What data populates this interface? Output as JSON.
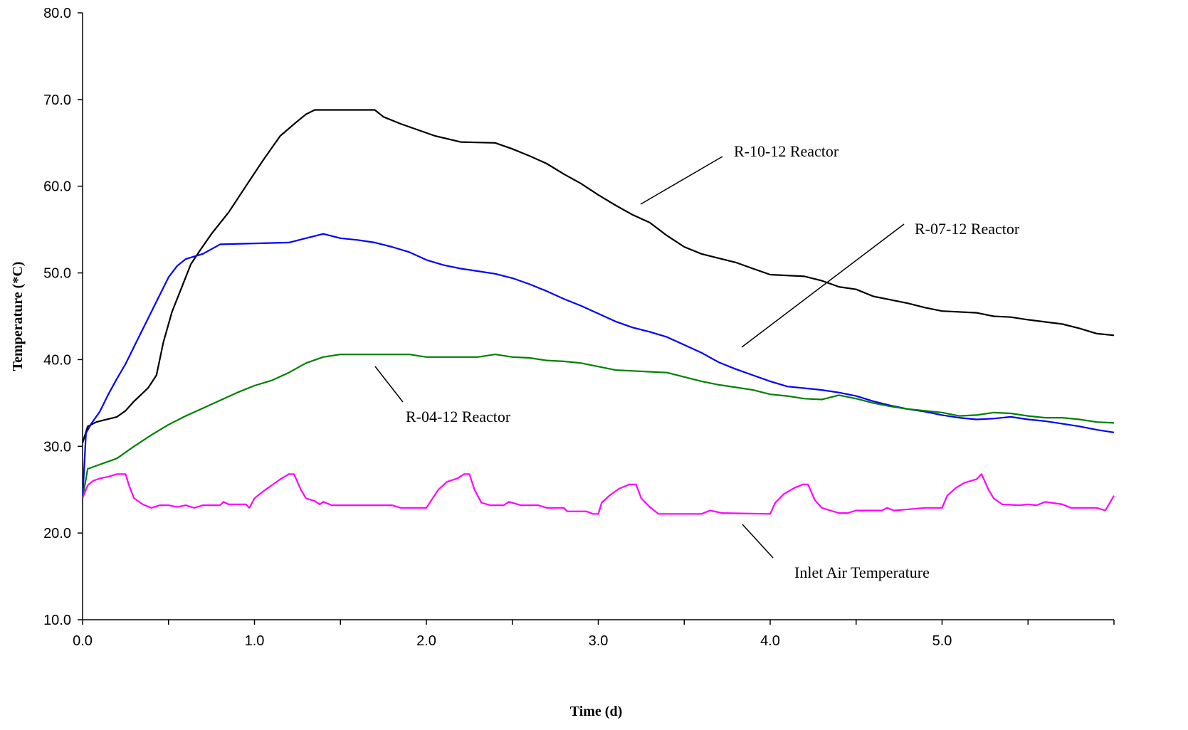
{
  "chart_data": {
    "type": "line",
    "xlabel": "Time (d)",
    "ylabel": "Temperature (*C)",
    "xlim": [
      0,
      6
    ],
    "ylim": [
      10,
      80
    ],
    "x_ticks": [
      "0.0",
      "1.0",
      "2.0",
      "3.0",
      "4.0",
      "5.0"
    ],
    "y_ticks": [
      "10.0",
      "20.0",
      "30.0",
      "40.0",
      "50.0",
      "60.0",
      "70.0",
      "80.0"
    ],
    "grid": false,
    "legend": "none",
    "series": [
      {
        "name": "R-10-12 Reactor",
        "color": "#000000",
        "points": [
          [
            0.0,
            30.4
          ],
          [
            0.03,
            32.3
          ],
          [
            0.08,
            32.8
          ],
          [
            0.12,
            33.0
          ],
          [
            0.2,
            33.4
          ],
          [
            0.25,
            34.1
          ],
          [
            0.3,
            35.2
          ],
          [
            0.38,
            36.7
          ],
          [
            0.43,
            38.2
          ],
          [
            0.47,
            42.0
          ],
          [
            0.52,
            45.5
          ],
          [
            0.58,
            48.5
          ],
          [
            0.63,
            51.0
          ],
          [
            0.68,
            52.5
          ],
          [
            0.75,
            54.5
          ],
          [
            0.85,
            57.0
          ],
          [
            0.95,
            60.0
          ],
          [
            1.05,
            63.0
          ],
          [
            1.15,
            65.8
          ],
          [
            1.25,
            67.5
          ],
          [
            1.3,
            68.3
          ],
          [
            1.35,
            68.8
          ],
          [
            1.7,
            68.8
          ],
          [
            1.75,
            68.0
          ],
          [
            1.85,
            67.2
          ],
          [
            1.95,
            66.5
          ],
          [
            2.05,
            65.8
          ],
          [
            2.2,
            65.1
          ],
          [
            2.4,
            65.0
          ],
          [
            2.5,
            64.3
          ],
          [
            2.6,
            63.5
          ],
          [
            2.7,
            62.6
          ],
          [
            2.8,
            61.4
          ],
          [
            2.9,
            60.3
          ],
          [
            3.0,
            59.0
          ],
          [
            3.1,
            57.8
          ],
          [
            3.2,
            56.7
          ],
          [
            3.3,
            55.8
          ],
          [
            3.4,
            54.3
          ],
          [
            3.5,
            53.0
          ],
          [
            3.6,
            52.2
          ],
          [
            3.7,
            51.7
          ],
          [
            3.8,
            51.2
          ],
          [
            3.9,
            50.5
          ],
          [
            4.0,
            49.8
          ],
          [
            4.2,
            49.6
          ],
          [
            4.3,
            49.1
          ],
          [
            4.4,
            48.4
          ],
          [
            4.5,
            48.1
          ],
          [
            4.6,
            47.3
          ],
          [
            4.7,
            46.9
          ],
          [
            4.8,
            46.5
          ],
          [
            4.9,
            46.0
          ],
          [
            5.0,
            45.6
          ],
          [
            5.2,
            45.4
          ],
          [
            5.3,
            45.0
          ],
          [
            5.4,
            44.9
          ],
          [
            5.5,
            44.6
          ],
          [
            5.7,
            44.1
          ],
          [
            5.8,
            43.6
          ],
          [
            5.9,
            43.0
          ],
          [
            6.0,
            42.8
          ]
        ]
      },
      {
        "name": "R-07-12 Reactor",
        "color": "#0000ff",
        "points": [
          [
            0.0,
            24.0
          ],
          [
            0.02,
            31.5
          ],
          [
            0.05,
            32.6
          ],
          [
            0.1,
            34.0
          ],
          [
            0.15,
            36.0
          ],
          [
            0.2,
            37.8
          ],
          [
            0.25,
            39.5
          ],
          [
            0.3,
            41.5
          ],
          [
            0.35,
            43.5
          ],
          [
            0.4,
            45.5
          ],
          [
            0.45,
            47.5
          ],
          [
            0.5,
            49.5
          ],
          [
            0.55,
            50.8
          ],
          [
            0.6,
            51.6
          ],
          [
            0.7,
            52.2
          ],
          [
            0.8,
            53.3
          ],
          [
            1.0,
            53.4
          ],
          [
            1.2,
            53.5
          ],
          [
            1.3,
            54.0
          ],
          [
            1.4,
            54.5
          ],
          [
            1.5,
            54.0
          ],
          [
            1.6,
            53.8
          ],
          [
            1.7,
            53.5
          ],
          [
            1.8,
            53.0
          ],
          [
            1.9,
            52.4
          ],
          [
            2.0,
            51.5
          ],
          [
            2.1,
            50.9
          ],
          [
            2.2,
            50.5
          ],
          [
            2.3,
            50.2
          ],
          [
            2.4,
            49.9
          ],
          [
            2.5,
            49.4
          ],
          [
            2.6,
            48.7
          ],
          [
            2.7,
            47.9
          ],
          [
            2.8,
            47.0
          ],
          [
            2.9,
            46.2
          ],
          [
            3.0,
            45.3
          ],
          [
            3.1,
            44.4
          ],
          [
            3.2,
            43.7
          ],
          [
            3.3,
            43.2
          ],
          [
            3.4,
            42.6
          ],
          [
            3.5,
            41.7
          ],
          [
            3.6,
            40.8
          ],
          [
            3.7,
            39.7
          ],
          [
            3.8,
            38.9
          ],
          [
            3.9,
            38.2
          ],
          [
            4.0,
            37.5
          ],
          [
            4.1,
            36.9
          ],
          [
            4.2,
            36.7
          ],
          [
            4.3,
            36.5
          ],
          [
            4.4,
            36.2
          ],
          [
            4.5,
            35.8
          ],
          [
            4.6,
            35.2
          ],
          [
            4.7,
            34.7
          ],
          [
            4.8,
            34.3
          ],
          [
            4.9,
            34.0
          ],
          [
            5.0,
            33.6
          ],
          [
            5.1,
            33.3
          ],
          [
            5.2,
            33.1
          ],
          [
            5.3,
            33.2
          ],
          [
            5.4,
            33.4
          ],
          [
            5.5,
            33.1
          ],
          [
            5.6,
            32.9
          ],
          [
            5.7,
            32.6
          ],
          [
            5.8,
            32.3
          ],
          [
            5.9,
            31.9
          ],
          [
            6.0,
            31.6
          ]
        ]
      },
      {
        "name": "R-04-12 Reactor",
        "color": "#008000",
        "points": [
          [
            0.0,
            24.0
          ],
          [
            0.03,
            27.4
          ],
          [
            0.1,
            27.9
          ],
          [
            0.2,
            28.6
          ],
          [
            0.3,
            30.0
          ],
          [
            0.4,
            31.3
          ],
          [
            0.5,
            32.5
          ],
          [
            0.6,
            33.5
          ],
          [
            0.7,
            34.4
          ],
          [
            0.8,
            35.3
          ],
          [
            0.9,
            36.2
          ],
          [
            1.0,
            37.0
          ],
          [
            1.1,
            37.6
          ],
          [
            1.2,
            38.5
          ],
          [
            1.3,
            39.6
          ],
          [
            1.4,
            40.3
          ],
          [
            1.5,
            40.6
          ],
          [
            1.6,
            40.6
          ],
          [
            1.9,
            40.6
          ],
          [
            2.0,
            40.3
          ],
          [
            2.3,
            40.3
          ],
          [
            2.4,
            40.6
          ],
          [
            2.5,
            40.3
          ],
          [
            2.6,
            40.2
          ],
          [
            2.7,
            39.9
          ],
          [
            2.8,
            39.8
          ],
          [
            2.9,
            39.6
          ],
          [
            3.0,
            39.2
          ],
          [
            3.1,
            38.8
          ],
          [
            3.2,
            38.7
          ],
          [
            3.3,
            38.6
          ],
          [
            3.4,
            38.5
          ],
          [
            3.5,
            38.0
          ],
          [
            3.6,
            37.5
          ],
          [
            3.7,
            37.1
          ],
          [
            3.8,
            36.8
          ],
          [
            3.9,
            36.5
          ],
          [
            4.0,
            36.0
          ],
          [
            4.1,
            35.8
          ],
          [
            4.2,
            35.5
          ],
          [
            4.3,
            35.4
          ],
          [
            4.4,
            35.9
          ],
          [
            4.5,
            35.5
          ],
          [
            4.6,
            35.0
          ],
          [
            4.7,
            34.6
          ],
          [
            4.8,
            34.3
          ],
          [
            4.9,
            34.1
          ],
          [
            5.0,
            33.9
          ],
          [
            5.1,
            33.5
          ],
          [
            5.2,
            33.6
          ],
          [
            5.3,
            33.9
          ],
          [
            5.4,
            33.8
          ],
          [
            5.5,
            33.5
          ],
          [
            5.6,
            33.3
          ],
          [
            5.7,
            33.3
          ],
          [
            5.8,
            33.1
          ],
          [
            5.9,
            32.8
          ],
          [
            6.0,
            32.7
          ]
        ]
      },
      {
        "name": "Inlet Air Temperature",
        "color": "#ff00ff",
        "points": [
          [
            0.0,
            24.0
          ],
          [
            0.03,
            25.5
          ],
          [
            0.06,
            26.0
          ],
          [
            0.1,
            26.3
          ],
          [
            0.15,
            26.5
          ],
          [
            0.2,
            26.8
          ],
          [
            0.25,
            26.8
          ],
          [
            0.27,
            25.5
          ],
          [
            0.3,
            24.0
          ],
          [
            0.35,
            23.3
          ],
          [
            0.4,
            22.9
          ],
          [
            0.45,
            23.2
          ],
          [
            0.5,
            23.2
          ],
          [
            0.55,
            23.0
          ],
          [
            0.6,
            23.2
          ],
          [
            0.65,
            22.9
          ],
          [
            0.7,
            23.2
          ],
          [
            0.8,
            23.2
          ],
          [
            0.82,
            23.6
          ],
          [
            0.85,
            23.3
          ],
          [
            0.95,
            23.3
          ],
          [
            0.97,
            22.9
          ],
          [
            1.0,
            24.0
          ],
          [
            1.05,
            24.8
          ],
          [
            1.1,
            25.5
          ],
          [
            1.15,
            26.2
          ],
          [
            1.2,
            26.8
          ],
          [
            1.23,
            26.8
          ],
          [
            1.27,
            25.0
          ],
          [
            1.3,
            24.0
          ],
          [
            1.35,
            23.7
          ],
          [
            1.38,
            23.3
          ],
          [
            1.4,
            23.6
          ],
          [
            1.45,
            23.2
          ],
          [
            1.8,
            23.2
          ],
          [
            1.85,
            22.9
          ],
          [
            2.0,
            22.9
          ],
          [
            2.03,
            23.8
          ],
          [
            2.07,
            25.0
          ],
          [
            2.12,
            25.9
          ],
          [
            2.18,
            26.3
          ],
          [
            2.22,
            26.8
          ],
          [
            2.25,
            26.8
          ],
          [
            2.28,
            25.0
          ],
          [
            2.32,
            23.5
          ],
          [
            2.37,
            23.2
          ],
          [
            2.45,
            23.2
          ],
          [
            2.48,
            23.6
          ],
          [
            2.55,
            23.2
          ],
          [
            2.65,
            23.2
          ],
          [
            2.7,
            22.9
          ],
          [
            2.8,
            22.9
          ],
          [
            2.82,
            22.5
          ],
          [
            2.93,
            22.5
          ],
          [
            2.97,
            22.2
          ],
          [
            3.0,
            22.2
          ],
          [
            3.02,
            23.5
          ],
          [
            3.07,
            24.4
          ],
          [
            3.12,
            25.1
          ],
          [
            3.18,
            25.6
          ],
          [
            3.22,
            25.6
          ],
          [
            3.25,
            24.0
          ],
          [
            3.3,
            23.0
          ],
          [
            3.35,
            22.2
          ],
          [
            3.6,
            22.2
          ],
          [
            3.65,
            22.6
          ],
          [
            3.72,
            22.3
          ],
          [
            4.0,
            22.2
          ],
          [
            4.03,
            23.5
          ],
          [
            4.08,
            24.5
          ],
          [
            4.14,
            25.2
          ],
          [
            4.19,
            25.6
          ],
          [
            4.22,
            25.6
          ],
          [
            4.26,
            23.8
          ],
          [
            4.3,
            22.9
          ],
          [
            4.35,
            22.6
          ],
          [
            4.4,
            22.3
          ],
          [
            4.45,
            22.3
          ],
          [
            4.5,
            22.6
          ],
          [
            4.65,
            22.6
          ],
          [
            4.68,
            22.9
          ],
          [
            4.72,
            22.6
          ],
          [
            4.9,
            22.9
          ],
          [
            5.0,
            22.9
          ],
          [
            5.03,
            24.3
          ],
          [
            5.08,
            25.2
          ],
          [
            5.13,
            25.8
          ],
          [
            5.2,
            26.2
          ],
          [
            5.23,
            26.8
          ],
          [
            5.27,
            25.0
          ],
          [
            5.3,
            24.0
          ],
          [
            5.35,
            23.3
          ],
          [
            5.45,
            23.2
          ],
          [
            5.5,
            23.3
          ],
          [
            5.55,
            23.2
          ],
          [
            5.6,
            23.6
          ],
          [
            5.7,
            23.3
          ],
          [
            5.75,
            22.9
          ],
          [
            5.9,
            22.9
          ],
          [
            5.95,
            22.6
          ],
          [
            6.0,
            24.3
          ]
        ]
      }
    ],
    "annotations": [
      "R-10-12 Reactor",
      "R-07-12 Reactor",
      "R-04-12 Reactor",
      "Inlet Air Temperature"
    ]
  }
}
